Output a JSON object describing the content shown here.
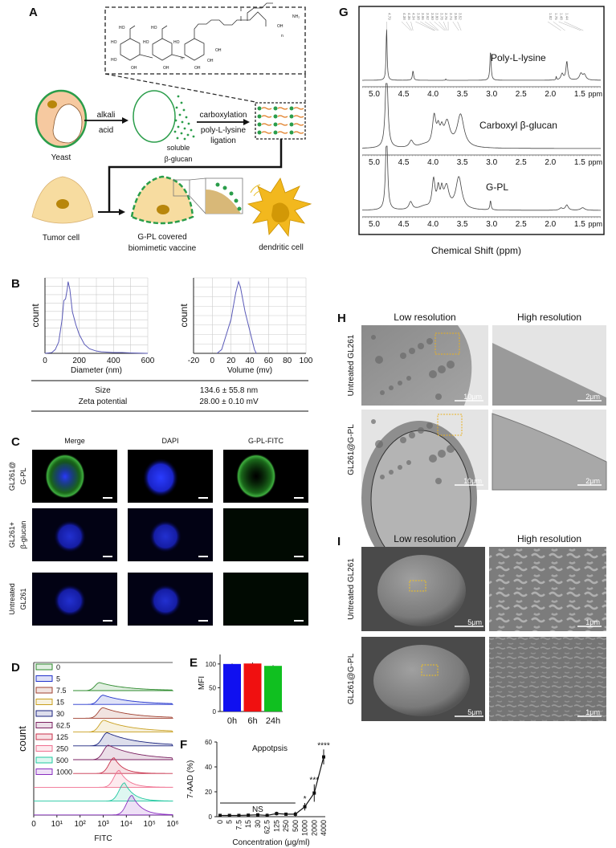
{
  "panels": {
    "A": {
      "letter": "A",
      "labels": {
        "yeast": "Yeast",
        "alkali": "alkali",
        "acid": "acid",
        "soluble1": "soluble",
        "soluble2": "β-glucan",
        "carboxylation": "carboxylation",
        "pll": "poly-L-lysine",
        "ligation": "ligation",
        "tumor": "Tumor cell",
        "gpl1": "G-PL covered",
        "gpl2": "biomimetic vaccine",
        "dc": "dendritic cell"
      },
      "structure_labels": [
        "HO",
        "HO",
        "HO",
        "OH",
        "HO",
        "HO",
        "OH",
        "HO",
        "OH",
        "OH",
        "OH",
        "NH₂",
        "OH",
        "n",
        "n"
      ],
      "colors": {
        "green": "#2a9d4a",
        "cell": "#f7dca0",
        "nucleus": "#b8860b",
        "yeast": "#f6c9a0",
        "dc": "#f2b81e"
      }
    },
    "B": {
      "letter": "B",
      "table": [
        {
          "label": "Size",
          "value": "134.6 ± 55.8 nm"
        },
        {
          "label": "Zeta potential",
          "value": "28.00 ± 0.10 mV"
        }
      ]
    },
    "C": {
      "letter": "C",
      "columns": [
        "Merge",
        "DAPI",
        "G-PL-FITC"
      ],
      "rows": [
        {
          "l1": "GL261@",
          "l2": "G-PL"
        },
        {
          "l1": "GL261+",
          "l2": "β-glucan"
        },
        {
          "l1": "Untreated",
          "l2": "GL261"
        }
      ]
    },
    "D": {
      "letter": "D"
    },
    "E": {
      "letter": "E"
    },
    "F": {
      "letter": "F"
    },
    "G": {
      "letter": "G"
    },
    "H": {
      "letter": "H",
      "columns": [
        "Low  resolution",
        "High  resolution"
      ],
      "rows": [
        "Untreated GL261",
        "GL261@G-PL"
      ],
      "scalebars": [
        "10μm",
        "2μm",
        "10μm",
        "2μm"
      ]
    },
    "I": {
      "letter": "I",
      "columns": [
        "Low  resolution",
        "High  resolution"
      ],
      "rows": [
        "Untreated GL261",
        "GL261@G-PL"
      ],
      "scalebars": [
        "5μm",
        "1μm",
        "5μm",
        "1μm"
      ]
    }
  },
  "chart_data": [
    {
      "id": "B-size",
      "type": "line",
      "xlabel": "Diameter (nm)",
      "ylabel": "count",
      "xlim": [
        0,
        600
      ],
      "xticks": [
        "0",
        "200",
        "400",
        "600"
      ],
      "grid": true,
      "x": [
        0,
        40,
        60,
        80,
        100,
        110,
        120,
        130,
        135,
        145,
        160,
        180,
        200,
        230,
        260,
        300,
        330,
        400,
        450,
        500,
        600
      ],
      "y": [
        0,
        1,
        5,
        15,
        45,
        70,
        72,
        85,
        95,
        85,
        55,
        38,
        25,
        12,
        6,
        3,
        2,
        1,
        1,
        0.5,
        0
      ]
    },
    {
      "id": "B-zeta",
      "type": "line",
      "xlabel": "Volume (mv)",
      "ylabel": "count",
      "xlim": [
        -20,
        100
      ],
      "xticks": [
        "-20",
        "0",
        "20",
        "40",
        "60",
        "80",
        "100"
      ],
      "grid": true,
      "x": [
        5,
        10,
        15,
        20,
        25,
        28,
        30,
        35,
        40,
        45,
        47
      ],
      "y": [
        0,
        5,
        25,
        45,
        80,
        95,
        88,
        55,
        30,
        5,
        0
      ]
    },
    {
      "id": "D",
      "type": "area",
      "xlabel": "FITC",
      "ylabel": "count",
      "xscale": "log",
      "xticks": [
        "0",
        "10¹",
        "10²",
        "10³",
        "10⁴",
        "10⁵",
        "10⁶"
      ],
      "legend_placement": "top-left",
      "series": [
        {
          "name": "0",
          "peak": 700,
          "color": "#2e8b2e"
        },
        {
          "name": "5",
          "peak": 1000,
          "color": "#2233cc"
        },
        {
          "name": "7.5",
          "peak": 1000,
          "color": "#a04030"
        },
        {
          "name": "15",
          "peak": 1100,
          "color": "#c9a020"
        },
        {
          "name": "30",
          "peak": 1500,
          "color": "#1a237e"
        },
        {
          "name": "62.5",
          "peak": 1700,
          "color": "#7a2060"
        },
        {
          "name": "125",
          "peak": 3000,
          "color": "#c8304a"
        },
        {
          "name": "250",
          "peak": 5000,
          "color": "#f07090"
        },
        {
          "name": "500",
          "peak": 8500,
          "color": "#20c8a0"
        },
        {
          "name": "1000",
          "peak": 18000,
          "color": "#8a30c0"
        }
      ]
    },
    {
      "id": "E",
      "type": "bar",
      "ylabel": "MFI",
      "ylim": [
        0,
        120
      ],
      "yticks": [
        "0",
        "50",
        "100"
      ],
      "categories": [
        "0h",
        "6h",
        "24h"
      ],
      "values": [
        100,
        101,
        96
      ],
      "errors": [
        1,
        2,
        1.5
      ],
      "colors": [
        "#1010f0",
        "#f01010",
        "#10c020"
      ]
    },
    {
      "id": "F",
      "type": "line",
      "title": "Appotpsis",
      "xlabel": "Concentration (μg/ml)",
      "ylabel": "7-AAD (%)",
      "ylim": [
        0,
        60
      ],
      "yticks": [
        "0",
        "20",
        "40",
        "60"
      ],
      "categories": [
        "0",
        "5",
        "7.5",
        "15",
        "30",
        "62.5",
        "125",
        "250",
        "500",
        "1000",
        "2000",
        "4000"
      ],
      "values": [
        1,
        1,
        1,
        1.2,
        1.5,
        1,
        2.5,
        2,
        2,
        8,
        19,
        48
      ],
      "errors": [
        1,
        0.8,
        0.6,
        0.8,
        1,
        1.5,
        1.5,
        0.8,
        2,
        3,
        7,
        6
      ],
      "significance": [
        {
          "category": "1000",
          "label": "*"
        },
        {
          "category": "2000",
          "label": "***"
        },
        {
          "category": "4000",
          "label": "****"
        }
      ],
      "ns_label": "NS"
    },
    {
      "id": "G",
      "type": "line",
      "xlabel": "Chemical Shift (ppm)",
      "x_unit": "ppm",
      "xlim": [
        5.3,
        1.2
      ],
      "xticks": [
        "5.0",
        "4.5",
        "4.0",
        "3.5",
        "3.0",
        "2.5",
        "2.0",
        "1.5"
      ],
      "peak_labels_left": [
        "4.79"
      ],
      "peak_labels_mid": [
        "4.38",
        "4.36",
        "4.34",
        "3.98",
        "3.96",
        "3.92",
        "3.90",
        "3.80",
        "3.78",
        "3.76",
        "3.74",
        "3.56",
        "3.52"
      ],
      "peak_labels_right": [
        "1.82",
        "1.75",
        "1.48",
        "1.44"
      ],
      "series": [
        {
          "name": "Poly-L-lysine",
          "peaks": [
            [
              4.79,
              1.0,
              0.01
            ],
            [
              4.34,
              0.18,
              0.012
            ],
            [
              3.78,
              0.03,
              0.005
            ],
            [
              3.02,
              0.55,
              0.012
            ],
            [
              1.9,
              0.07,
              0.006
            ],
            [
              1.8,
              0.12,
              0.025
            ],
            [
              1.72,
              0.35,
              0.018
            ],
            [
              1.48,
              0.12,
              0.03
            ],
            [
              1.42,
              0.1,
              0.03
            ]
          ]
        },
        {
          "name": "Carboxyl β-glucan",
          "peaks": [
            [
              4.79,
              1.6,
              0.025
            ],
            [
              4.37,
              0.13,
              0.04
            ],
            [
              4.15,
              0.05,
              0.12
            ],
            [
              3.98,
              0.55,
              0.035
            ],
            [
              3.91,
              0.28,
              0.03
            ],
            [
              3.85,
              0.24,
              0.03
            ],
            [
              3.76,
              0.45,
              0.06
            ],
            [
              3.53,
              0.62,
              0.07
            ]
          ]
        },
        {
          "name": "G-PL",
          "peaks": [
            [
              4.79,
              1.6,
              0.02
            ],
            [
              4.38,
              0.15,
              0.035
            ],
            [
              4.15,
              0.06,
              0.1
            ],
            [
              3.99,
              0.55,
              0.03
            ],
            [
              3.91,
              0.35,
              0.025
            ],
            [
              3.85,
              0.3,
              0.025
            ],
            [
              3.77,
              0.42,
              0.05
            ],
            [
              3.56,
              0.62,
              0.06
            ],
            [
              3.02,
              0.18,
              0.012
            ],
            [
              1.82,
              0.04,
              0.03
            ],
            [
              1.72,
              0.1,
              0.03
            ],
            [
              1.45,
              0.05,
              0.04
            ]
          ]
        }
      ]
    }
  ]
}
